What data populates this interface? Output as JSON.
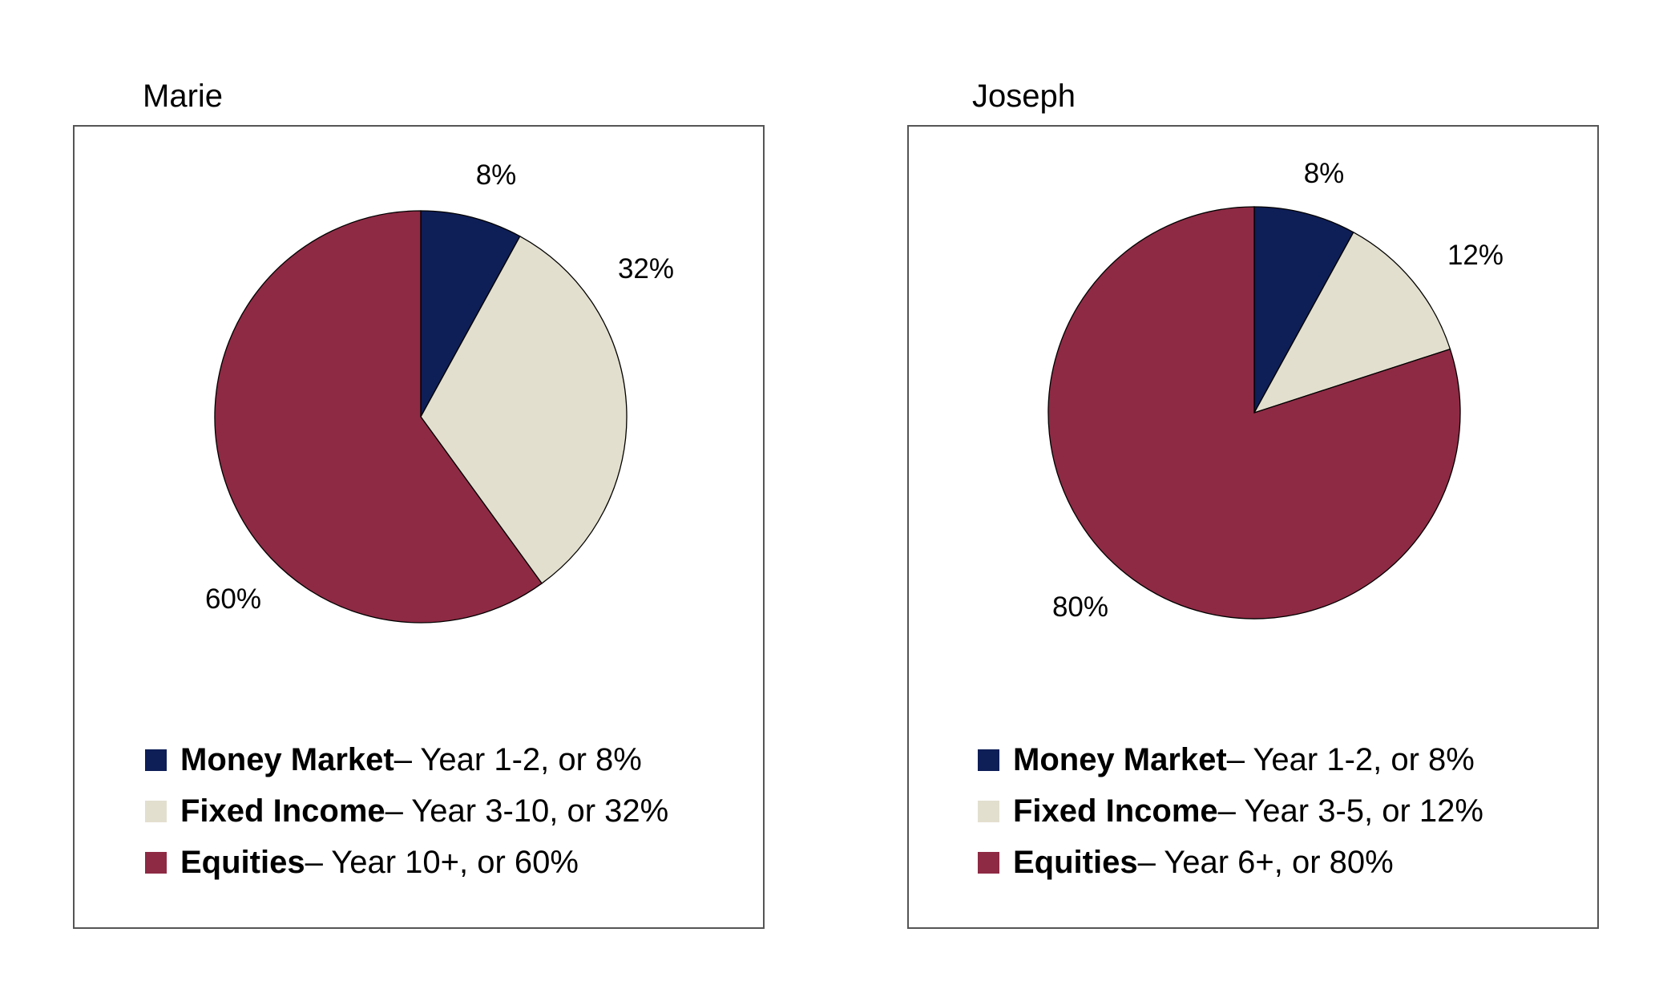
{
  "colors": {
    "money_market": "#0e1e57",
    "fixed_income": "#e3dfcf",
    "equities": "#8e2a44"
  },
  "chart_data": [
    {
      "type": "pie",
      "title": "Marie",
      "categories": [
        "Money Market",
        "Fixed Income",
        "Equities"
      ],
      "values": [
        8,
        32,
        60
      ],
      "slice_labels": [
        "8%",
        "32%",
        "60%"
      ],
      "legend": [
        {
          "name": "Money Market",
          "detail": " – Year 1-2, or 8%"
        },
        {
          "name": "Fixed Income",
          "detail": " – Year 3-10, or 32%"
        },
        {
          "name": "Equities",
          "detail": " – Year 10+, or 60%"
        }
      ]
    },
    {
      "type": "pie",
      "title": "Joseph",
      "categories": [
        "Money Market",
        "Fixed Income",
        "Equities"
      ],
      "values": [
        8,
        12,
        80
      ],
      "slice_labels": [
        "8%",
        "12%",
        "80%"
      ],
      "legend": [
        {
          "name": "Money Market",
          "detail": " – Year 1-2, or 8%"
        },
        {
          "name": "Fixed Income",
          "detail": " – Year 3-5, or 12%"
        },
        {
          "name": "Equities",
          "detail": " – Year 6+, or 80%"
        }
      ]
    }
  ]
}
